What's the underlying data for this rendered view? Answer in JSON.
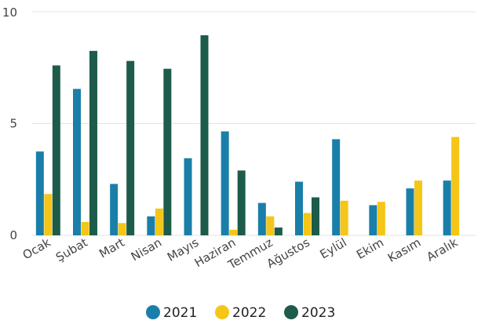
{
  "chart_data": {
    "type": "bar",
    "title": "",
    "xlabel": "",
    "ylabel": "",
    "categories": [
      "Ocak",
      "Şubat",
      "Mart",
      "Nisan",
      "Mayıs",
      "Haziran",
      "Temmuz",
      "Ağustos",
      "Eylül",
      "Ekim",
      "Kasım",
      "Aralık"
    ],
    "series": [
      {
        "name": "2021",
        "color": "#1a7fa8",
        "values": [
          3.75,
          6.55,
          2.3,
          0.85,
          3.45,
          4.65,
          1.45,
          2.4,
          4.3,
          1.35,
          2.1,
          2.45
        ]
      },
      {
        "name": "2022",
        "color": "#f5c518",
        "values": [
          1.85,
          0.6,
          0.55,
          1.2,
          0,
          0.25,
          0.85,
          1.0,
          1.55,
          1.5,
          2.45,
          4.4
        ]
      },
      {
        "name": "2023",
        "color": "#1d5b4a",
        "values": [
          7.6,
          8.25,
          7.8,
          7.45,
          8.95,
          2.9,
          0.35,
          1.7,
          0,
          0,
          0,
          0
        ]
      }
    ],
    "ylim": [
      0,
      10
    ],
    "yticks": [
      0,
      5,
      10
    ],
    "grid": true,
    "legend_position": "bottom-center"
  }
}
